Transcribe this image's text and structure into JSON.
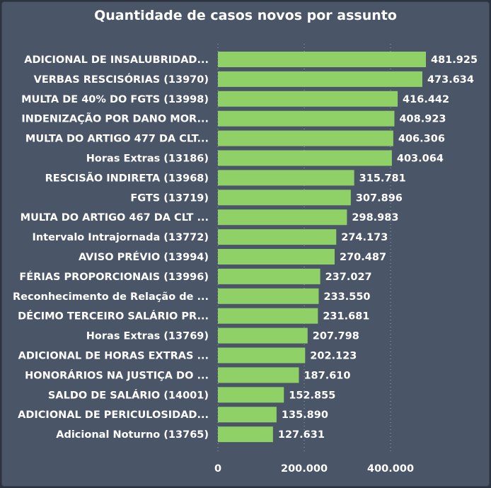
{
  "chart_data": {
    "type": "bar",
    "orientation": "horizontal",
    "title": "Quantidade de casos novos por assunto",
    "categories": [
      "ADICIONAL DE INSALUBRIDAD...",
      "VERBAS RESCISÓRIAS (13970)",
      "MULTA DE 40% DO FGTS (13998)",
      "INDENIZAÇÃO POR DANO MOR...",
      "MULTA DO ARTIGO 477 DA CLT...",
      "Horas Extras (13186)",
      "RESCISÃO INDIRETA (13968)",
      "FGTS (13719)",
      "MULTA DO ARTIGO 467 DA CLT ...",
      "Intervalo Intrajornada (13772)",
      "AVISO PRÉVIO (13994)",
      "FÉRIAS PROPORCIONAIS (13996)",
      "Reconhecimento de Relação de ...",
      "DÉCIMO TERCEIRO SALÁRIO PR...",
      "Horas Extras (13769)",
      "ADICIONAL DE HORAS EXTRAS ...",
      "HONORÁRIOS NA JUSTIÇA DO ...",
      "SALDO DE SALÁRIO (14001)",
      "ADICIONAL DE PERICULOSIDAD...",
      "Adicional Noturno (13765)"
    ],
    "values": [
      481925,
      473634,
      416442,
      408923,
      406306,
      403064,
      315781,
      307896,
      298983,
      274173,
      270487,
      237027,
      233550,
      231681,
      207798,
      202123,
      187610,
      152855,
      135890,
      127631
    ],
    "value_labels": [
      "481.925",
      "473.634",
      "416.442",
      "408.923",
      "406.306",
      "403.064",
      "315.781",
      "307.896",
      "298.983",
      "274.173",
      "270.487",
      "237.027",
      "233.550",
      "231.681",
      "207.798",
      "202.123",
      "187.610",
      "152.855",
      "135.890",
      "127.631"
    ],
    "x_ticks": [
      0,
      200000,
      400000
    ],
    "x_tick_labels": [
      "0",
      "200.000",
      "400.000"
    ],
    "xlim": [
      0,
      481925
    ],
    "grid": "vertical dotted",
    "colors": {
      "bar": "#8fd166",
      "background": "#4a5567",
      "text": "#ffffff",
      "grid": "#9aa3b2"
    }
  }
}
